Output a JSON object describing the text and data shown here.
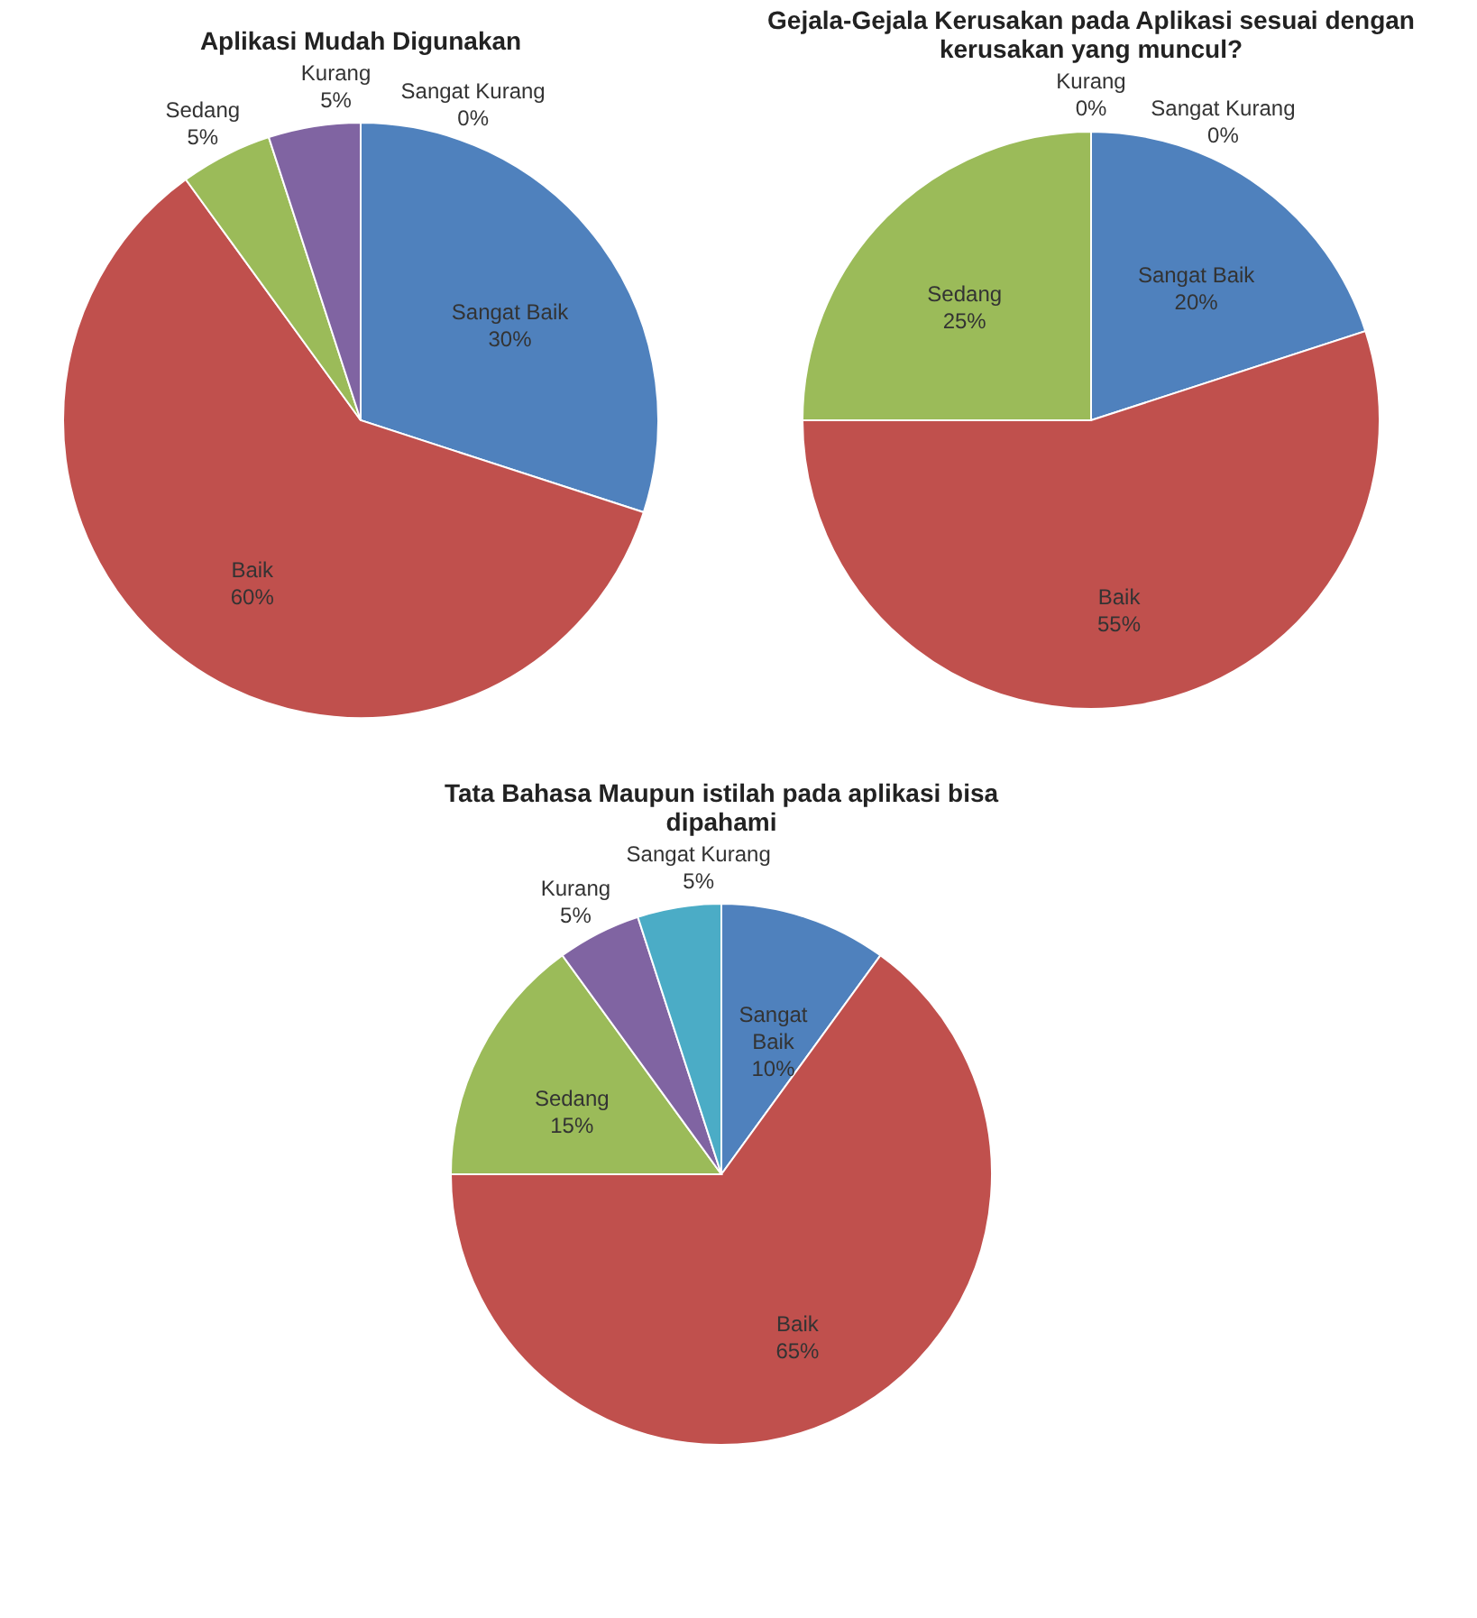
{
  "chart_data": [
    {
      "type": "pie",
      "title": "Aplikasi Mudah Digunakan",
      "categories": [
        "Sangat Baik",
        "Baik",
        "Sedang",
        "Kurang",
        "Sangat Kurang"
      ],
      "values": [
        30,
        60,
        5,
        5,
        0
      ],
      "value_labels": [
        "30%",
        "60%",
        "5%",
        "5%",
        "0%"
      ],
      "colors": [
        "#4f81bd",
        "#c0504d",
        "#9bbb59",
        "#8064a2",
        "#4bacc6"
      ]
    },
    {
      "type": "pie",
      "title": "Gejala-Gejala Kerusakan pada Aplikasi sesuai dengan kerusakan yang muncul?",
      "categories": [
        "Sangat Baik",
        "Baik",
        "Sedang",
        "Kurang",
        "Sangat Kurang"
      ],
      "values": [
        20,
        55,
        25,
        0,
        0
      ],
      "value_labels": [
        "20%",
        "55%",
        "25%",
        "0%",
        "0%"
      ],
      "colors": [
        "#4f81bd",
        "#c0504d",
        "#9bbb59",
        "#8064a2",
        "#4bacc6"
      ]
    },
    {
      "type": "pie",
      "title": "Tata Bahasa Maupun istilah pada aplikasi bisa dipahami",
      "categories": [
        "Sangat Baik",
        "Baik",
        "Sedang",
        "Kurang",
        "Sangat Kurang"
      ],
      "values": [
        10,
        65,
        15,
        5,
        5
      ],
      "value_labels": [
        "10%",
        "65%",
        "15%",
        "5%",
        "5%"
      ],
      "colors": [
        "#4f81bd",
        "#c0504d",
        "#9bbb59",
        "#8064a2",
        "#4bacc6"
      ]
    }
  ]
}
